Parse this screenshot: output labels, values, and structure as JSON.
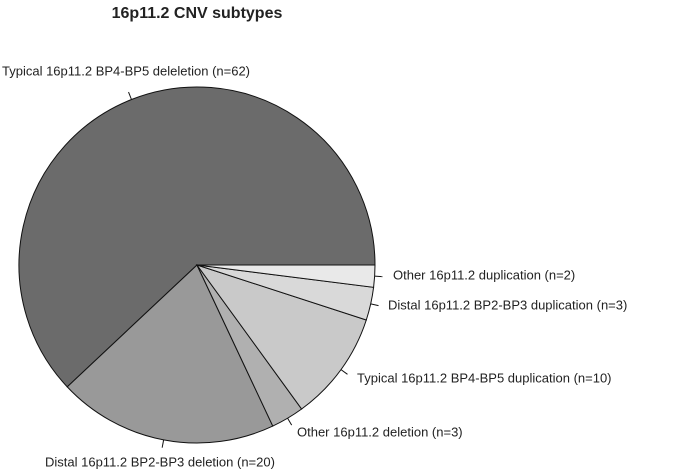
{
  "chart_data": {
    "type": "pie",
    "title": "16p11.2 CNV subtypes",
    "categories": [
      "Typical 16p11.2 BP4-BP5 deleletion (n=62)",
      "Distal 16p11.2 BP2-BP3 deletion (n=20)",
      "Other 16p11.2 deletion (n=3)",
      "Typical 16p11.2 BP4-BP5 duplication (n=10)",
      "Distal 16p11.2 BP2-BP3 duplication (n=3)",
      "Other 16p11.2 duplication (n=2)"
    ],
    "values": [
      62,
      20,
      3,
      10,
      3,
      2
    ],
    "colors": [
      "#6b6b6b",
      "#999999",
      "#b0b0b0",
      "#c9c9c9",
      "#d9d9d9",
      "#e9e9e9"
    ]
  }
}
